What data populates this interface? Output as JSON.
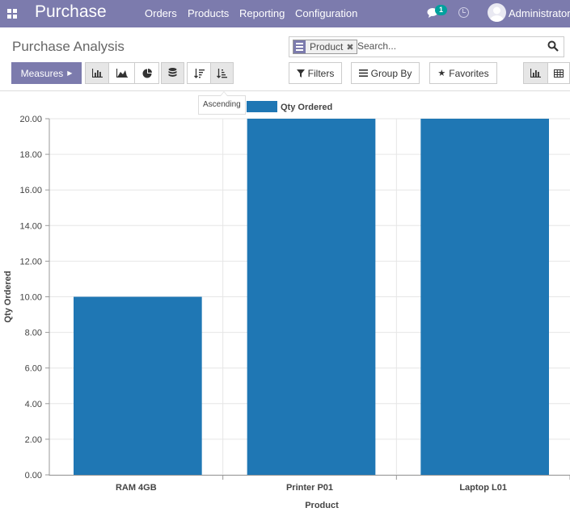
{
  "navbar": {
    "app_name": "Purchase",
    "menu": [
      "Orders",
      "Products",
      "Reporting",
      "Configuration"
    ],
    "chat_count": "1",
    "user_name": "Administrator"
  },
  "control_panel": {
    "title": "Purchase Analysis",
    "search": {
      "facet_label": "Product",
      "placeholder": "Search..."
    },
    "measures_label": "Measures",
    "filters_label": "Filters",
    "group_by_label": "Group By",
    "favorites_label": "Favorites",
    "tooltip": "Ascending"
  },
  "colors": {
    "brand": "#7c7bad",
    "bar": "#1f77b4",
    "badge": "#00a09d"
  },
  "chart_data": {
    "type": "bar",
    "categories": [
      "RAM 4GB",
      "Printer P01",
      "Laptop L01"
    ],
    "series": [
      {
        "name": "Qty Ordered",
        "values": [
          10,
          20,
          20
        ]
      }
    ],
    "xlabel": "Product",
    "ylabel": "Qty Ordered",
    "ylim": [
      0,
      20
    ],
    "yticks": [
      "0.00",
      "2.00",
      "4.00",
      "6.00",
      "8.00",
      "10.00",
      "12.00",
      "14.00",
      "16.00",
      "18.00",
      "20.00"
    ],
    "grid": true,
    "legend": "top"
  }
}
